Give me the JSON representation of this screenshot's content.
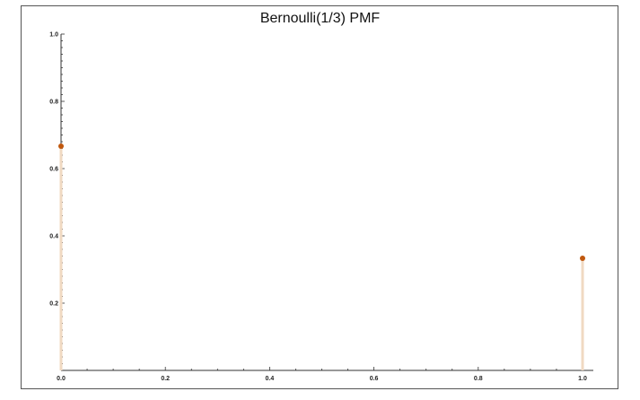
{
  "chart_data": {
    "type": "stem",
    "title": "Bernoulli(1/3) PMF",
    "xlabel": "",
    "ylabel": "",
    "x": [
      0.0,
      1.0
    ],
    "y": [
      0.6667,
      0.3333
    ],
    "xlim": [
      0.0,
      1.0
    ],
    "ylim": [
      0.0,
      1.0
    ],
    "xticks": [
      "0.0",
      "0.2",
      "0.4",
      "0.6",
      "0.8",
      "1.0"
    ],
    "yticks": [
      "0.2",
      "0.4",
      "0.6",
      "0.8",
      "1.0"
    ],
    "grid": false,
    "colors": {
      "point": "#c0580e",
      "stem": "#f0d9c2",
      "axis": "#333333"
    }
  }
}
